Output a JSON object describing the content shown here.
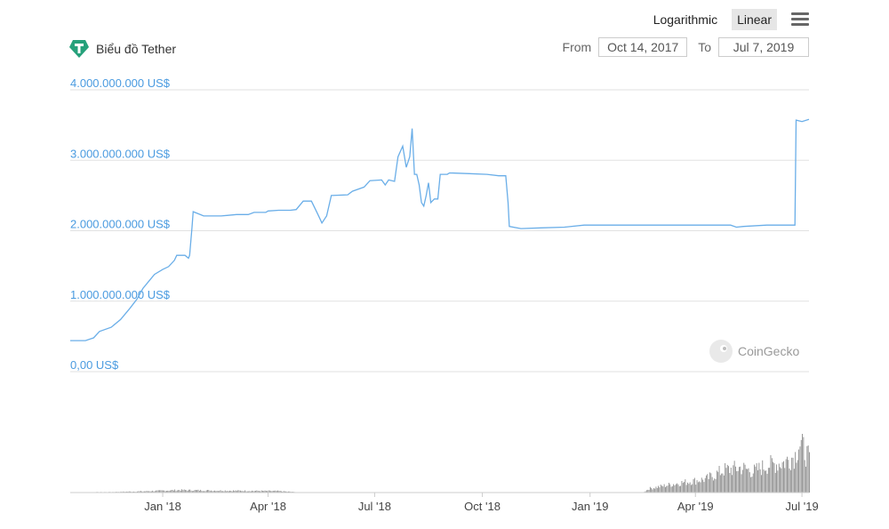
{
  "header": {
    "title": "Biểu đồ Tether",
    "scale_options": [
      "Logarithmic",
      "Linear"
    ],
    "active_scale": "Linear",
    "range": {
      "from_label": "From",
      "from_value": "Oct 14, 2017",
      "to_label": "To",
      "to_value": "Jul 7, 2019"
    }
  },
  "watermark": "CoinGecko",
  "colors": {
    "line": "#6aaee8",
    "label": "#4a9be0",
    "volume": "#8c8c8c",
    "grid": "#e2e2e2",
    "logo": "#26a17b"
  },
  "chart_data": {
    "type": "line",
    "y_unit_label_format": "US$",
    "ylim": [
      0,
      4000000000
    ],
    "y_ticks": [
      {
        "value": 0,
        "label": "0,00 US$"
      },
      {
        "value": 1000000000,
        "label": "1.000.000.000 US$"
      },
      {
        "value": 2000000000,
        "label": "2.000.000.000 US$"
      },
      {
        "value": 3000000000,
        "label": "3.000.000.000 US$"
      },
      {
        "value": 4000000000,
        "label": "4.000.000.000 US$"
      }
    ],
    "xlim": [
      "2017-10-14",
      "2019-07-07"
    ],
    "x_ticks": [
      {
        "date": "2018-01-01",
        "label": "Jan '18"
      },
      {
        "date": "2018-04-01",
        "label": "Apr '18"
      },
      {
        "date": "2018-07-01",
        "label": "Jul '18"
      },
      {
        "date": "2018-10-01",
        "label": "Oct '18"
      },
      {
        "date": "2019-01-01",
        "label": "Jan '19"
      },
      {
        "date": "2019-04-01",
        "label": "Apr '19"
      },
      {
        "date": "2019-07-01",
        "label": "Jul '19"
      }
    ],
    "grid": true,
    "market_cap": [
      [
        "2017-10-14",
        440000000
      ],
      [
        "2017-10-27",
        440000000
      ],
      [
        "2017-11-03",
        480000000
      ],
      [
        "2017-11-08",
        570000000
      ],
      [
        "2017-11-18",
        630000000
      ],
      [
        "2017-11-26",
        740000000
      ],
      [
        "2017-12-04",
        900000000
      ],
      [
        "2017-12-10",
        1030000000
      ],
      [
        "2017-12-15",
        1180000000
      ],
      [
        "2017-12-20",
        1280000000
      ],
      [
        "2017-12-25",
        1380000000
      ],
      [
        "2018-01-01",
        1450000000
      ],
      [
        "2018-01-06",
        1490000000
      ],
      [
        "2018-01-11",
        1580000000
      ],
      [
        "2018-01-13",
        1650000000
      ],
      [
        "2018-01-20",
        1650000000
      ],
      [
        "2018-01-23",
        1610000000
      ],
      [
        "2018-01-24",
        1650000000
      ],
      [
        "2018-01-26",
        2050000000
      ],
      [
        "2018-01-27",
        2270000000
      ],
      [
        "2018-02-05",
        2210000000
      ],
      [
        "2018-02-20",
        2210000000
      ],
      [
        "2018-03-05",
        2230000000
      ],
      [
        "2018-03-15",
        2230000000
      ],
      [
        "2018-03-20",
        2260000000
      ],
      [
        "2018-03-30",
        2260000000
      ],
      [
        "2018-04-01",
        2280000000
      ],
      [
        "2018-04-10",
        2290000000
      ],
      [
        "2018-04-20",
        2290000000
      ],
      [
        "2018-04-25",
        2300000000
      ],
      [
        "2018-05-01",
        2420000000
      ],
      [
        "2018-05-08",
        2420000000
      ],
      [
        "2018-05-13",
        2250000000
      ],
      [
        "2018-05-17",
        2110000000
      ],
      [
        "2018-05-21",
        2210000000
      ],
      [
        "2018-05-25",
        2500000000
      ],
      [
        "2018-06-08",
        2510000000
      ],
      [
        "2018-06-12",
        2560000000
      ],
      [
        "2018-06-22",
        2620000000
      ],
      [
        "2018-06-27",
        2710000000
      ],
      [
        "2018-07-07",
        2720000000
      ],
      [
        "2018-07-10",
        2650000000
      ],
      [
        "2018-07-13",
        2720000000
      ],
      [
        "2018-07-18",
        2700000000
      ],
      [
        "2018-07-21",
        3050000000
      ],
      [
        "2018-07-25",
        3200000000
      ],
      [
        "2018-07-28",
        2900000000
      ],
      [
        "2018-07-31",
        3050000000
      ],
      [
        "2018-08-02",
        3450000000
      ],
      [
        "2018-08-04",
        2800000000
      ],
      [
        "2018-08-06",
        2800000000
      ],
      [
        "2018-08-08",
        2650000000
      ],
      [
        "2018-08-10",
        2400000000
      ],
      [
        "2018-08-12",
        2350000000
      ],
      [
        "2018-08-14",
        2500000000
      ],
      [
        "2018-08-16",
        2680000000
      ],
      [
        "2018-08-18",
        2400000000
      ],
      [
        "2018-08-21",
        2450000000
      ],
      [
        "2018-08-24",
        2450000000
      ],
      [
        "2018-08-26",
        2800000000
      ],
      [
        "2018-09-01",
        2800000000
      ],
      [
        "2018-09-03",
        2820000000
      ],
      [
        "2018-09-20",
        2810000000
      ],
      [
        "2018-10-05",
        2800000000
      ],
      [
        "2018-10-15",
        2780000000
      ],
      [
        "2018-10-21",
        2780000000
      ],
      [
        "2018-10-23",
        2400000000
      ],
      [
        "2018-10-24",
        2060000000
      ],
      [
        "2018-11-03",
        2030000000
      ],
      [
        "2018-11-20",
        2040000000
      ],
      [
        "2018-12-10",
        2050000000
      ],
      [
        "2018-12-27",
        2080000000
      ],
      [
        "2019-01-05",
        2080000000
      ],
      [
        "2019-02-01",
        2080000000
      ],
      [
        "2019-03-01",
        2080000000
      ],
      [
        "2019-04-01",
        2080000000
      ],
      [
        "2019-05-01",
        2080000000
      ],
      [
        "2019-05-06",
        2050000000
      ],
      [
        "2019-05-12",
        2060000000
      ],
      [
        "2019-06-01",
        2080000000
      ],
      [
        "2019-06-25",
        2080000000
      ],
      [
        "2019-06-26",
        3570000000
      ],
      [
        "2019-07-01",
        3550000000
      ],
      [
        "2019-07-07",
        3580000000
      ]
    ],
    "volume": [
      [
        "2017-10-14",
        0.006
      ],
      [
        "2017-11-15",
        0.01
      ],
      [
        "2017-12-15",
        0.025
      ],
      [
        "2018-01-15",
        0.05
      ],
      [
        "2018-02-15",
        0.04
      ],
      [
        "2018-03-15",
        0.035
      ],
      [
        "2018-04-10",
        0.03
      ],
      [
        "2018-05-01",
        0.0
      ],
      [
        "2018-07-15",
        0.0
      ],
      [
        "2018-10-01",
        0.0
      ],
      [
        "2019-01-01",
        0.0
      ],
      [
        "2019-02-15",
        0.0
      ],
      [
        "2019-02-20",
        0.08
      ],
      [
        "2019-03-15",
        0.18
      ],
      [
        "2019-04-10",
        0.27
      ],
      [
        "2019-04-25",
        0.45
      ],
      [
        "2019-05-10",
        0.5
      ],
      [
        "2019-05-20",
        0.42
      ],
      [
        "2019-06-01",
        0.55
      ],
      [
        "2019-06-15",
        0.6
      ],
      [
        "2019-06-25",
        0.75
      ],
      [
        "2019-06-28",
        1.0
      ],
      [
        "2019-07-03",
        0.85
      ],
      [
        "2019-07-07",
        0.65
      ]
    ]
  }
}
